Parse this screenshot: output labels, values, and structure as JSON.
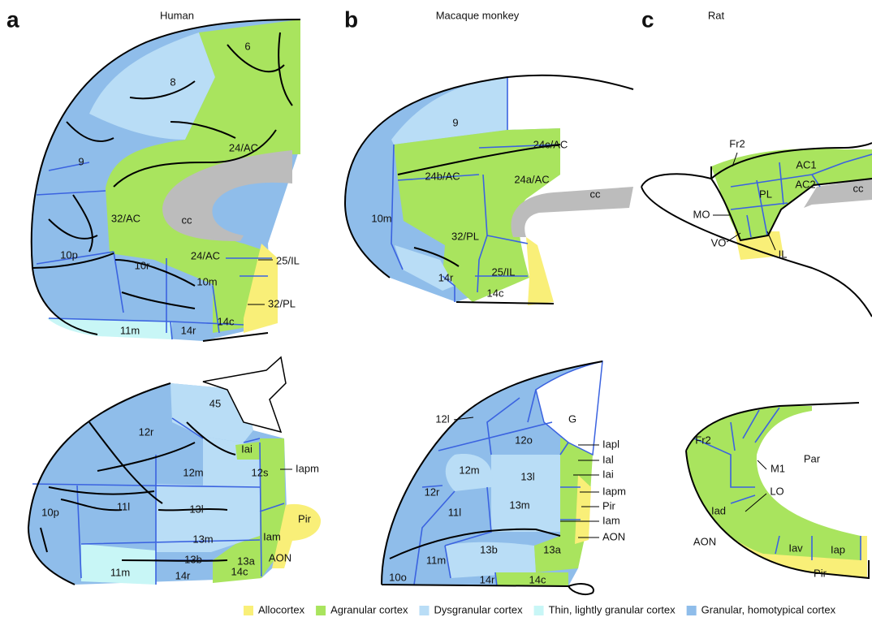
{
  "panels": [
    {
      "letter": "a",
      "title": "Human",
      "medial_labels": [
        "6",
        "8",
        "9",
        "24/AC",
        "32/AC",
        "cc",
        "10p",
        "10r",
        "10m",
        "24/AC",
        "25/IL",
        "32/PL",
        "11m",
        "14r",
        "14c"
      ],
      "orbital_labels": [
        "45",
        "12r",
        "Iai",
        "12m",
        "12s",
        "Iapm",
        "11l",
        "13l",
        "10p",
        "Iam",
        "Pir",
        "AON",
        "13m",
        "13a",
        "13b",
        "11m",
        "14r",
        "14c"
      ]
    },
    {
      "letter": "b",
      "title": "Macaque monkey",
      "medial_labels": [
        "9",
        "24c/AC",
        "24b/AC",
        "24a/AC",
        "cc",
        "10m",
        "32/PL",
        "25/IL",
        "14r",
        "14c"
      ],
      "orbital_labels": [
        "12l",
        "G",
        "12o",
        "Iapl",
        "Ial",
        "12m",
        "Iai",
        "12r",
        "13l",
        "Iapm",
        "11l",
        "13m",
        "Pir",
        "Iam",
        "AON",
        "13b",
        "13a",
        "10o",
        "11m",
        "14r",
        "14c"
      ]
    },
    {
      "letter": "c",
      "title": "Rat",
      "medial_labels": [
        "Fr2",
        "AC1",
        "PL",
        "AC2",
        "cc",
        "MO",
        "VO",
        "IL"
      ],
      "orbital_labels": [
        "Fr2",
        "M1",
        "Par",
        "Iad",
        "LO",
        "AON",
        "Iav",
        "Iap",
        "Pir"
      ]
    }
  ],
  "legend": [
    {
      "label": "Allocortex",
      "color": "#f9ef78"
    },
    {
      "label": "Agranular cortex",
      "color": "#a9e45e"
    },
    {
      "label": "Dysgranular cortex",
      "color": "#b9ddf6"
    },
    {
      "label": "Thin, lightly granular cortex",
      "color": "#c8f6f6"
    },
    {
      "label": "Granular, homotypical cortex",
      "color": "#8fbdea"
    }
  ]
}
